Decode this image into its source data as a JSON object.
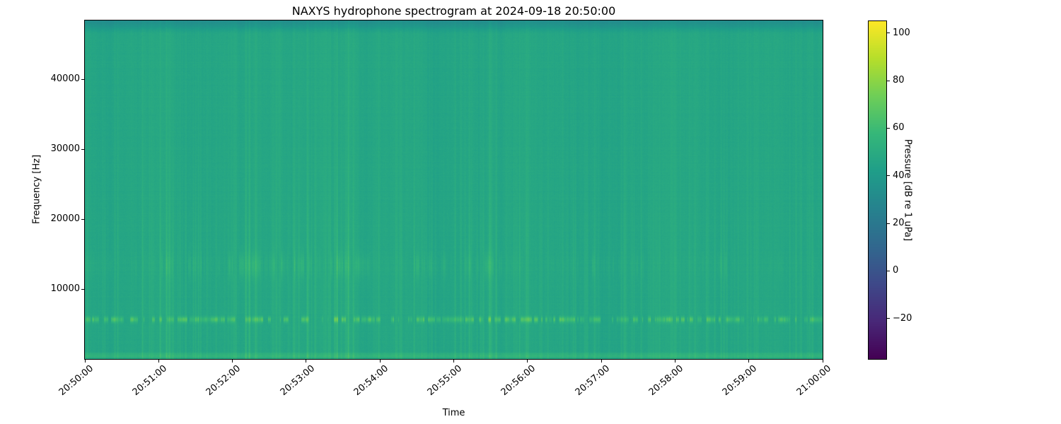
{
  "figure": {
    "background": "#ffffff",
    "text_color": "#000000"
  },
  "chart_data": {
    "type": "heatmap",
    "title": "NAXYS hydrophone spectrogram at 2024-09-18 20:50:00",
    "xlabel": "Time",
    "ylabel": "Frequency [Hz]",
    "x_ticks": [
      "20:50:00",
      "20:51:00",
      "20:52:00",
      "20:53:00",
      "20:54:00",
      "20:55:00",
      "20:56:00",
      "20:57:00",
      "20:58:00",
      "20:59:00",
      "21:00:00"
    ],
    "y_ticks": [
      10000,
      20000,
      30000,
      40000
    ],
    "ylim": [
      0,
      48400
    ],
    "grid": false,
    "colorbar": {
      "label": "Pressure [dB re 1 uPa]",
      "ticks": [
        100,
        80,
        60,
        40,
        20,
        0,
        -20
      ],
      "vmin": -37,
      "vmax": 105,
      "colormap": "viridis",
      "stops": [
        "#440154",
        "#482878",
        "#3e4989",
        "#31688e",
        "#26828e",
        "#1f9e89",
        "#35b779",
        "#6ece58",
        "#b5de2b",
        "#fde725"
      ]
    },
    "heatmap": {
      "description": "mostly uniform teal field ~47 dB with vertical broadband streaks, bright tonal dash row near 5600 Hz, brighter dash band 11.5-15.3 kHz, bright low-frequency band below 900 Hz, slightly darker top edge",
      "seed": 1337,
      "base_db": 47,
      "noise_db": 2.2,
      "streak_max_db": 9,
      "dash_row": {
        "hz": 5600,
        "sigma_hz": 300,
        "min_db": 9,
        "max_db": 24
      },
      "mid_band": {
        "center_hz": 13350,
        "sigma_hz": 1250,
        "min_db": 4,
        "max_db": 11
      },
      "bottom_band": {
        "hz": 900,
        "db": 5
      },
      "top_fade": {
        "hz": 46600,
        "db": 5
      }
    }
  }
}
